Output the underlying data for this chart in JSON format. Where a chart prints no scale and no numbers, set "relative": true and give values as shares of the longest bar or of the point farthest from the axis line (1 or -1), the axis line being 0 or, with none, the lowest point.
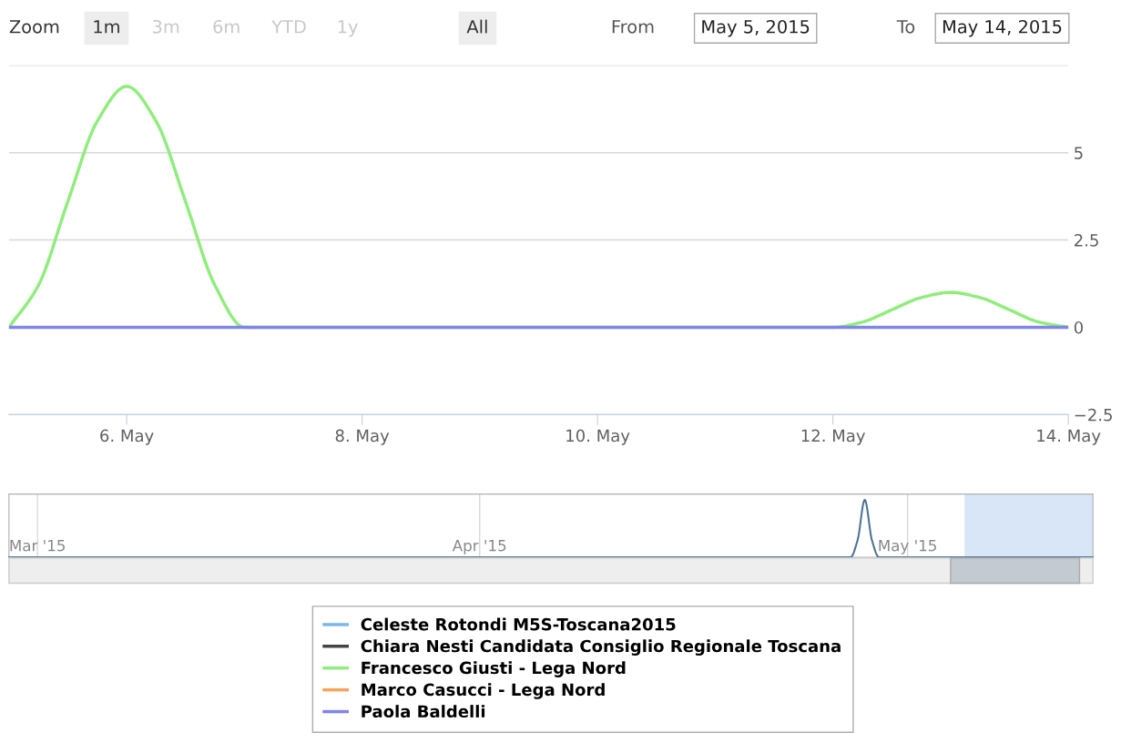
{
  "chart_data": [
    {
      "type": "line",
      "annotations": [
        "Zoom",
        "1m",
        "3m",
        "6m",
        "YTD",
        "1y",
        "All",
        "From",
        "May 5, 2015",
        "To",
        "May 14, 2015"
      ],
      "series": [
        {
          "name": "Celeste Rotondi M5S-Toscana2015",
          "color": "#7cb5ec"
        },
        {
          "name": "Chiara Nesti Candidata Consiglio Regionale Toscana",
          "color": "#434348"
        },
        {
          "name": "Francesco Giusti - Lega Nord",
          "color": "#90ed7d",
          "x": [
            "2015-05-05T00:00",
            "2015-05-05T06:00",
            "2015-05-05T12:00",
            "2015-05-05T18:00",
            "2015-05-06T00:00",
            "2015-05-06T06:00",
            "2015-05-06T12:00",
            "2015-05-06T18:00",
            "2015-05-07T00:00",
            "2015-05-12T00:00",
            "2015-05-12T06:00",
            "2015-05-12T12:00",
            "2015-05-12T18:00",
            "2015-05-13T00:00",
            "2015-05-13T06:00",
            "2015-05-13T12:00",
            "2015-05-13T18:00",
            "2015-05-14T00:00"
          ],
          "values": [
            0,
            1.2,
            3.6,
            5.9,
            6.9,
            5.9,
            3.6,
            1.2,
            0,
            0,
            0.15,
            0.5,
            0.85,
            1.0,
            0.85,
            0.5,
            0.15,
            0
          ]
        },
        {
          "name": "Marco Casucci - Lega Nord",
          "color": "#f7a35c"
        },
        {
          "name": "Paola Baldelli",
          "color": "#8085e9",
          "x": [
            "2015-05-05",
            "2015-05-14"
          ],
          "values": [
            0,
            0
          ]
        }
      ],
      "xlim": [
        "2015-05-05",
        "2015-05-14"
      ],
      "xticks": [
        {
          "value": "2015-05-06",
          "label": "6. May"
        },
        {
          "value": "2015-05-08",
          "label": "8. May"
        },
        {
          "value": "2015-05-10",
          "label": "10. May"
        },
        {
          "value": "2015-05-12",
          "label": "12. May"
        },
        {
          "value": "2015-05-14",
          "label": "14. May"
        }
      ],
      "ylim": [
        -2.5,
        7.5
      ],
      "yticks": [
        {
          "value": -2.5,
          "label": "−2.5"
        },
        0,
        2.5,
        5,
        {
          "value": 7.5,
          "label": null
        }
      ],
      "grid": "y",
      "legend": "bottom"
    },
    {
      "type": "line",
      "relative": true,
      "series": [
        {
          "color": "#4f7396",
          "x": [
            "2015-02-27",
            "2015-04-27",
            "2015-04-27T12:00",
            "2015-04-28",
            "2015-04-28T12:00",
            "2015-04-29",
            "2015-05-14"
          ],
          "values": [
            0,
            0,
            0.3,
            1,
            0.3,
            0,
            0
          ]
        }
      ],
      "xlim": [
        "2015-02-27",
        "2015-05-14"
      ],
      "xticks": [
        {
          "value": "2015-03-01",
          "label": "Mar '15"
        },
        {
          "value": "2015-04-01",
          "label": "Apr '15"
        },
        {
          "value": "2015-05-01",
          "label": "May '15"
        }
      ],
      "grid": "x",
      "bands": [
        {
          "axis": "x",
          "from": "2015-05-05",
          "to": "2015-05-14",
          "color": "#d8e6f8"
        }
      ]
    }
  ]
}
